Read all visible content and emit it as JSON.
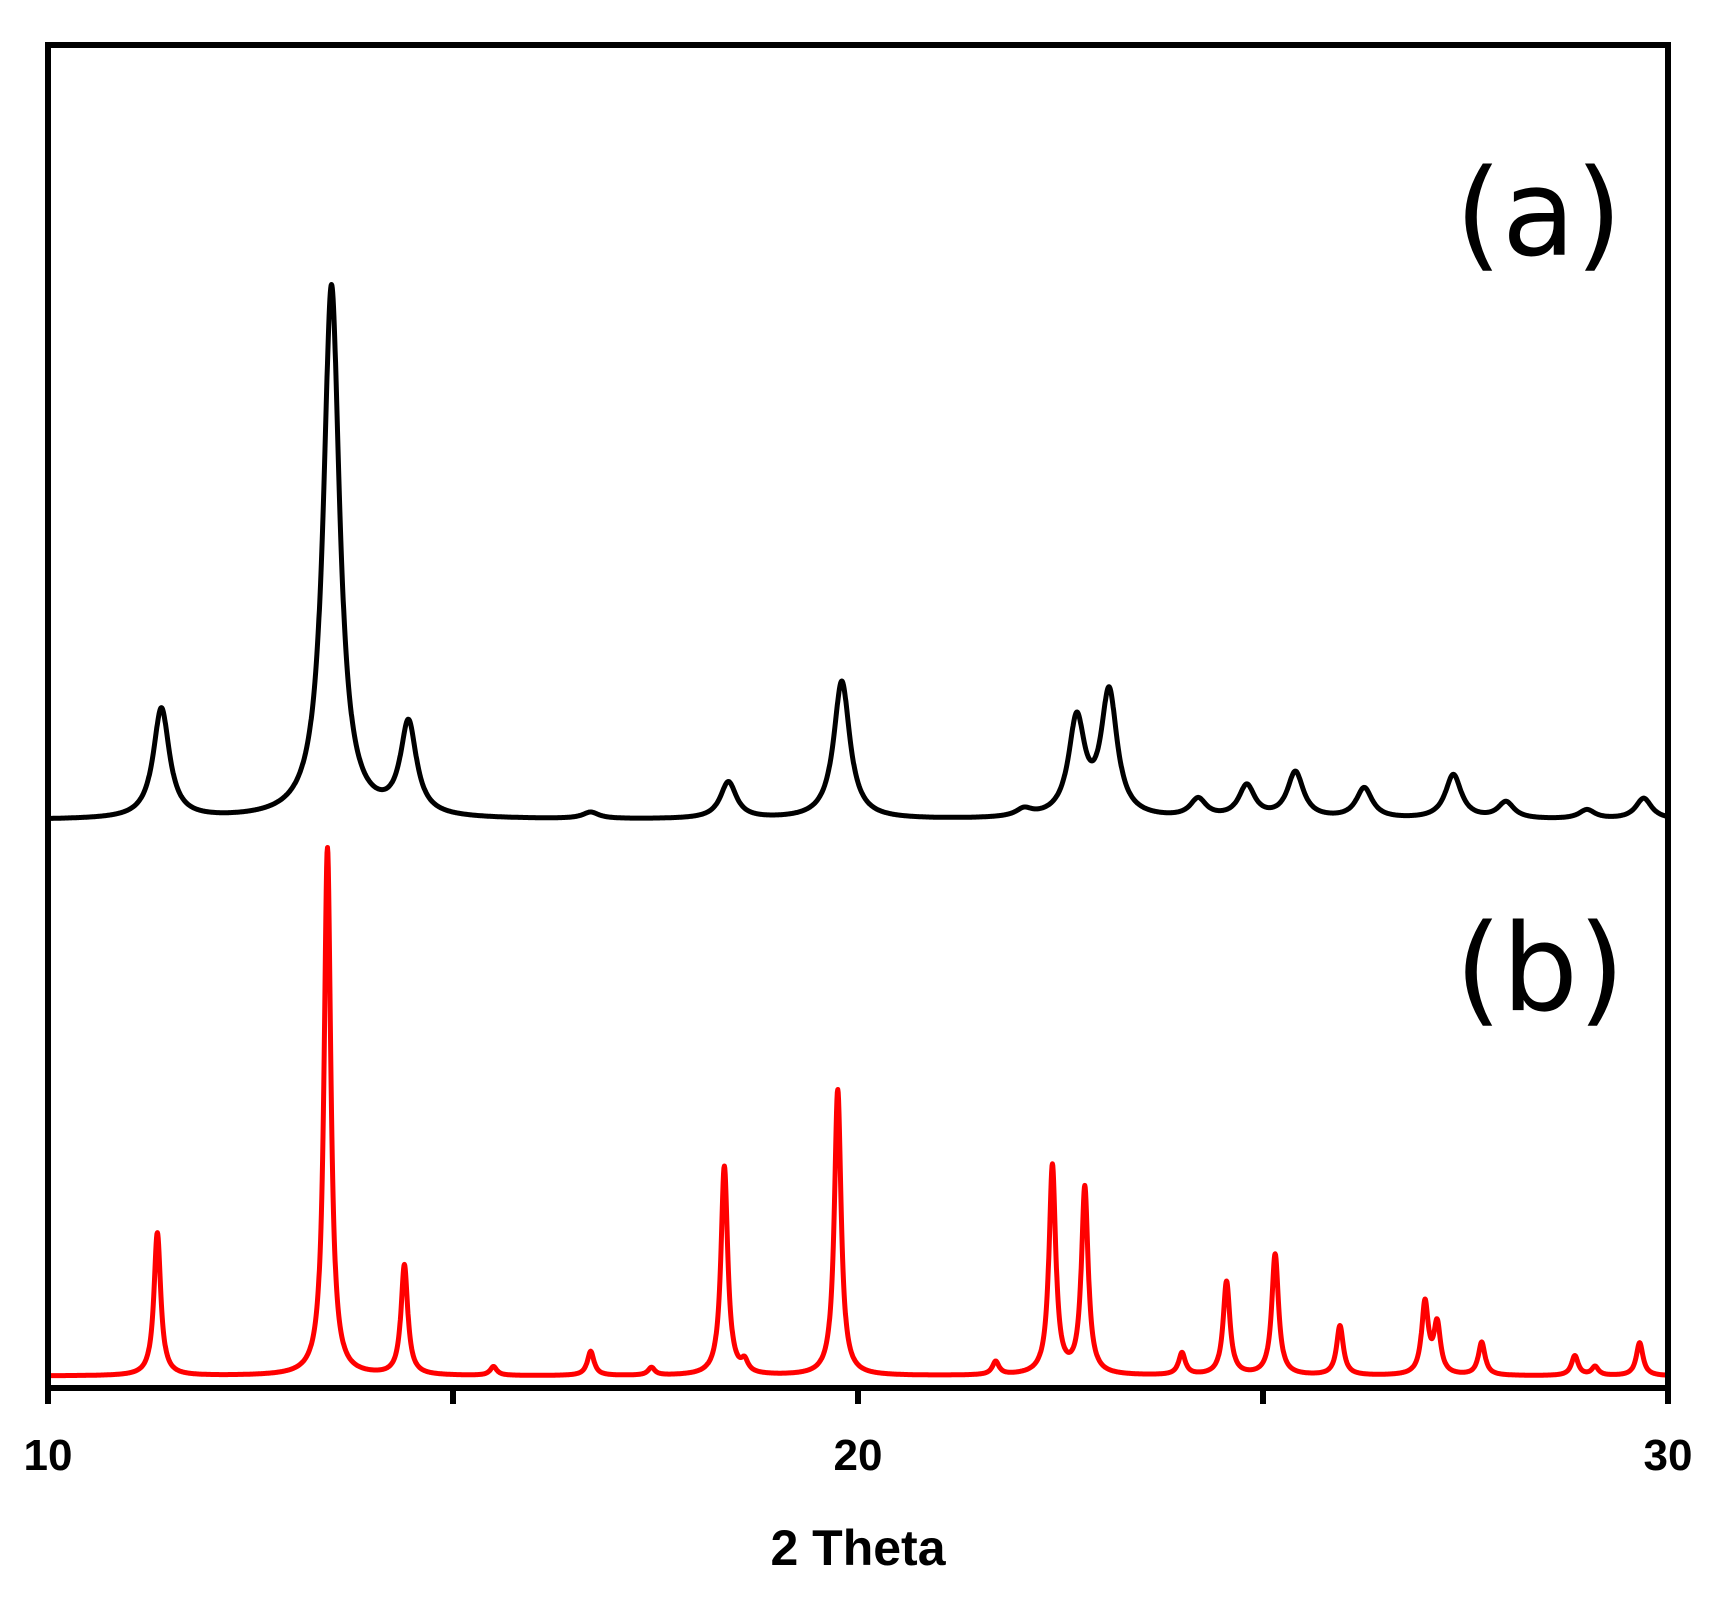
{
  "chart_data": {
    "type": "line",
    "title": "",
    "xlabel": "2 Theta",
    "ylabel": "",
    "xlim": [
      10,
      30
    ],
    "x_ticks": [
      10,
      15,
      20,
      25,
      30
    ],
    "x_tick_labels": [
      "10",
      "",
      "20",
      "",
      "30"
    ],
    "y_ticks_visible": false,
    "grid": false,
    "legend": "none",
    "annotations": [
      "(a)",
      "(b)"
    ],
    "series": [
      {
        "label": "(a)",
        "color": "#000000",
        "baseline": 0,
        "peak_width": 0.12,
        "peaks": [
          {
            "x": 11.4,
            "y": 12
          },
          {
            "x": 13.5,
            "y": 58
          },
          {
            "x": 14.45,
            "y": 10
          },
          {
            "x": 16.7,
            "y": 0.7
          },
          {
            "x": 18.4,
            "y": 4
          },
          {
            "x": 19.8,
            "y": 15
          },
          {
            "x": 22.05,
            "y": 0.8
          },
          {
            "x": 22.7,
            "y": 10.5
          },
          {
            "x": 23.1,
            "y": 13.5
          },
          {
            "x": 24.2,
            "y": 2
          },
          {
            "x": 24.8,
            "y": 3.5
          },
          {
            "x": 25.4,
            "y": 5
          },
          {
            "x": 26.25,
            "y": 3.3
          },
          {
            "x": 27.35,
            "y": 4.8
          },
          {
            "x": 28.0,
            "y": 1.8
          },
          {
            "x": 29.0,
            "y": 1.0
          },
          {
            "x": 29.7,
            "y": 2.3
          }
        ]
      },
      {
        "label": "(b)",
        "color": "#ff0000",
        "baseline": 0,
        "peak_width": 0.05,
        "peaks": [
          {
            "x": 11.35,
            "y": 13
          },
          {
            "x": 13.45,
            "y": 48
          },
          {
            "x": 14.4,
            "y": 10
          },
          {
            "x": 15.5,
            "y": 0.8
          },
          {
            "x": 16.7,
            "y": 2.2
          },
          {
            "x": 17.45,
            "y": 0.7
          },
          {
            "x": 18.35,
            "y": 19
          },
          {
            "x": 18.6,
            "y": 1
          },
          {
            "x": 19.75,
            "y": 26
          },
          {
            "x": 21.7,
            "y": 1.2
          },
          {
            "x": 22.4,
            "y": 19
          },
          {
            "x": 22.8,
            "y": 17
          },
          {
            "x": 24.0,
            "y": 2
          },
          {
            "x": 24.55,
            "y": 8.5
          },
          {
            "x": 25.15,
            "y": 11
          },
          {
            "x": 25.95,
            "y": 4.5
          },
          {
            "x": 27.0,
            "y": 6.5
          },
          {
            "x": 27.15,
            "y": 4.5
          },
          {
            "x": 27.7,
            "y": 3
          },
          {
            "x": 28.85,
            "y": 1.8
          },
          {
            "x": 29.1,
            "y": 0.8
          },
          {
            "x": 29.65,
            "y": 3
          }
        ]
      }
    ]
  }
}
